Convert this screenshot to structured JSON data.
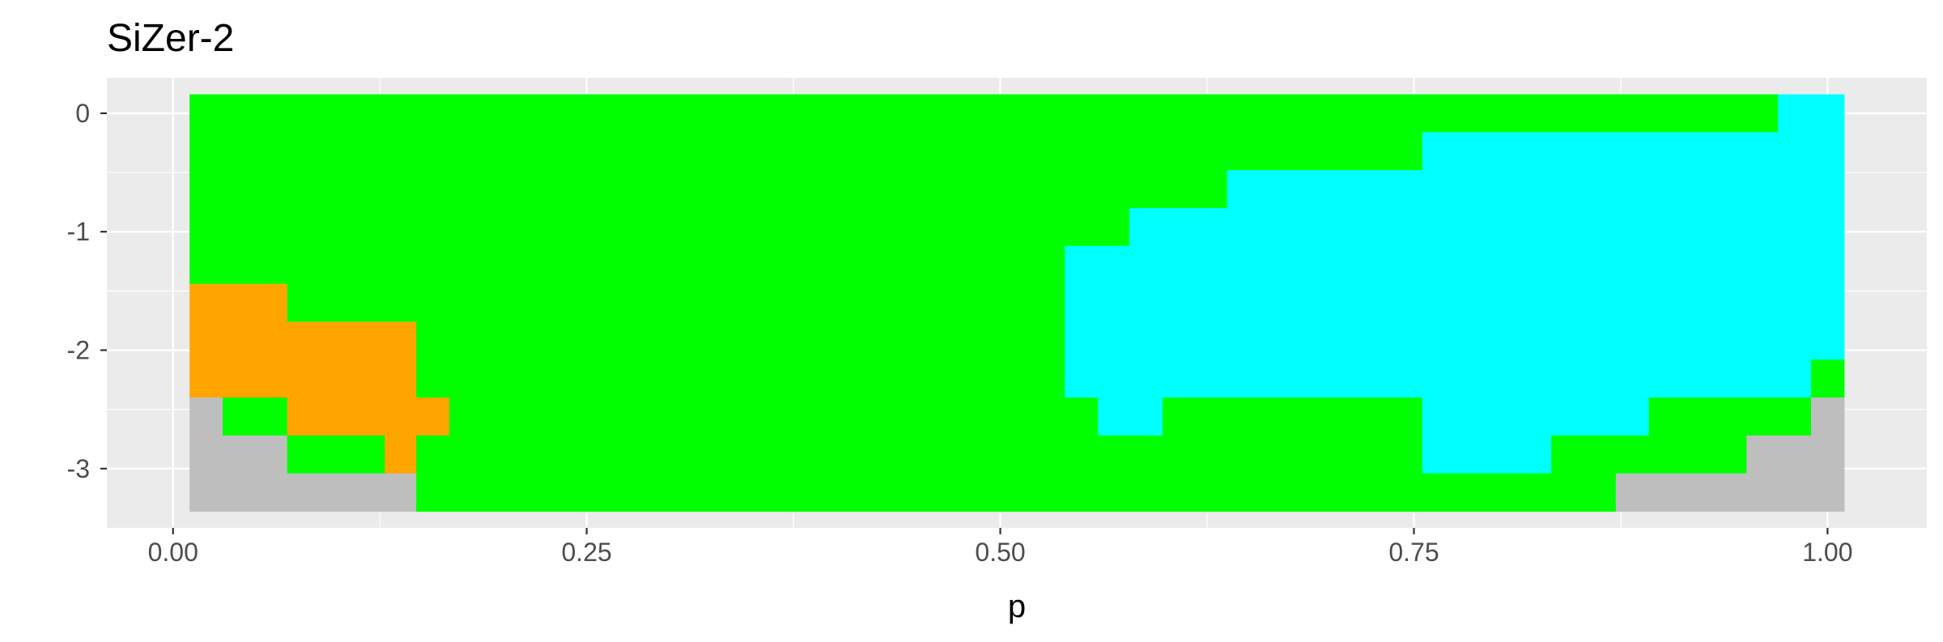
{
  "chart_data": {
    "type": "heatmap",
    "title": "SiZer-2",
    "xlabel": "p",
    "ylabel": "",
    "xlim": [
      -0.04,
      1.06
    ],
    "ylim": [
      -3.5,
      0.3
    ],
    "x_ticks": [
      {
        "value": 0.0,
        "label": "0.00"
      },
      {
        "value": 0.25,
        "label": "0.25"
      },
      {
        "value": 0.5,
        "label": "0.50"
      },
      {
        "value": 0.75,
        "label": "0.75"
      },
      {
        "value": 1.0,
        "label": "1.00"
      }
    ],
    "y_ticks": [
      {
        "value": 0,
        "label": "0"
      },
      {
        "value": -1,
        "label": "-1"
      },
      {
        "value": -2,
        "label": "-2"
      },
      {
        "value": -3,
        "label": "-3"
      }
    ],
    "grid": true,
    "legend": "none",
    "colors": {
      "green": "#00ff00",
      "cyan": "#00ffff",
      "orange": "#ffa500",
      "gray": "#bebebe",
      "panel": "#ebebeb",
      "grid": "#ffffff"
    },
    "cells": [
      {
        "color": "green",
        "x0": 0.01,
        "x1": 0.97,
        "y0": 0.16,
        "y1": -0.16
      },
      {
        "color": "cyan",
        "x0": 0.97,
        "x1": 1.01,
        "y0": 0.16,
        "y1": -0.16
      },
      {
        "color": "green",
        "x0": 0.01,
        "x1": 0.755,
        "y0": -0.16,
        "y1": -0.48
      },
      {
        "color": "cyan",
        "x0": 0.755,
        "x1": 1.01,
        "y0": -0.16,
        "y1": -0.48
      },
      {
        "color": "green",
        "x0": 0.01,
        "x1": 0.637,
        "y0": -0.48,
        "y1": -0.8
      },
      {
        "color": "cyan",
        "x0": 0.637,
        "x1": 1.01,
        "y0": -0.48,
        "y1": -0.8
      },
      {
        "color": "green",
        "x0": 0.01,
        "x1": 0.578,
        "y0": -0.8,
        "y1": -1.12
      },
      {
        "color": "cyan",
        "x0": 0.578,
        "x1": 1.01,
        "y0": -0.8,
        "y1": -1.12
      },
      {
        "color": "green",
        "x0": 0.01,
        "x1": 0.539,
        "y0": -1.12,
        "y1": -1.44
      },
      {
        "color": "cyan",
        "x0": 0.539,
        "x1": 1.01,
        "y0": -1.12,
        "y1": -1.44
      },
      {
        "color": "orange",
        "x0": 0.01,
        "x1": 0.069,
        "y0": -1.44,
        "y1": -1.76
      },
      {
        "color": "green",
        "x0": 0.069,
        "x1": 0.539,
        "y0": -1.44,
        "y1": -1.76
      },
      {
        "color": "cyan",
        "x0": 0.539,
        "x1": 1.01,
        "y0": -1.44,
        "y1": -1.76
      },
      {
        "color": "orange",
        "x0": 0.01,
        "x1": 0.147,
        "y0": -1.76,
        "y1": -2.08
      },
      {
        "color": "green",
        "x0": 0.147,
        "x1": 0.539,
        "y0": -1.76,
        "y1": -2.08
      },
      {
        "color": "cyan",
        "x0": 0.539,
        "x1": 1.01,
        "y0": -1.76,
        "y1": -2.08
      },
      {
        "color": "orange",
        "x0": 0.01,
        "x1": 0.147,
        "y0": -2.08,
        "y1": -2.4
      },
      {
        "color": "green",
        "x0": 0.147,
        "x1": 0.539,
        "y0": -2.08,
        "y1": -2.4
      },
      {
        "color": "cyan",
        "x0": 0.539,
        "x1": 0.99,
        "y0": -2.08,
        "y1": -2.4
      },
      {
        "color": "green",
        "x0": 0.99,
        "x1": 1.01,
        "y0": -2.08,
        "y1": -2.4
      },
      {
        "color": "gray",
        "x0": 0.01,
        "x1": 0.03,
        "y0": -2.4,
        "y1": -2.72
      },
      {
        "color": "green",
        "x0": 0.03,
        "x1": 0.069,
        "y0": -2.4,
        "y1": -2.72
      },
      {
        "color": "orange",
        "x0": 0.069,
        "x1": 0.167,
        "y0": -2.4,
        "y1": -2.72
      },
      {
        "color": "green",
        "x0": 0.167,
        "x1": 0.539,
        "y0": -2.4,
        "y1": -2.72
      },
      {
        "color": "green",
        "x0": 0.539,
        "x1": 0.559,
        "y0": -2.4,
        "y1": -2.72
      },
      {
        "color": "cyan",
        "x0": 0.559,
        "x1": 0.598,
        "y0": -2.4,
        "y1": -2.72
      },
      {
        "color": "green",
        "x0": 0.598,
        "x1": 0.755,
        "y0": -2.4,
        "y1": -2.72
      },
      {
        "color": "cyan",
        "x0": 0.755,
        "x1": 0.892,
        "y0": -2.4,
        "y1": -2.72
      },
      {
        "color": "green",
        "x0": 0.892,
        "x1": 0.99,
        "y0": -2.4,
        "y1": -2.72
      },
      {
        "color": "gray",
        "x0": 0.99,
        "x1": 1.01,
        "y0": -2.4,
        "y1": -2.72
      },
      {
        "color": "gray",
        "x0": 0.01,
        "x1": 0.069,
        "y0": -2.72,
        "y1": -3.04
      },
      {
        "color": "green",
        "x0": 0.069,
        "x1": 0.128,
        "y0": -2.72,
        "y1": -3.04
      },
      {
        "color": "orange",
        "x0": 0.128,
        "x1": 0.147,
        "y0": -2.72,
        "y1": -3.04
      },
      {
        "color": "green",
        "x0": 0.147,
        "x1": 0.755,
        "y0": -2.72,
        "y1": -3.04
      },
      {
        "color": "cyan",
        "x0": 0.755,
        "x1": 0.833,
        "y0": -2.72,
        "y1": -3.04
      },
      {
        "color": "green",
        "x0": 0.833,
        "x1": 0.951,
        "y0": -2.72,
        "y1": -3.04
      },
      {
        "color": "gray",
        "x0": 0.951,
        "x1": 1.01,
        "y0": -2.72,
        "y1": -3.04
      },
      {
        "color": "gray",
        "x0": 0.01,
        "x1": 0.147,
        "y0": -3.04,
        "y1": -3.36
      },
      {
        "color": "green",
        "x0": 0.147,
        "x1": 0.872,
        "y0": -3.04,
        "y1": -3.36
      },
      {
        "color": "gray",
        "x0": 0.872,
        "x1": 1.01,
        "y0": -3.04,
        "y1": -3.36
      }
    ]
  }
}
